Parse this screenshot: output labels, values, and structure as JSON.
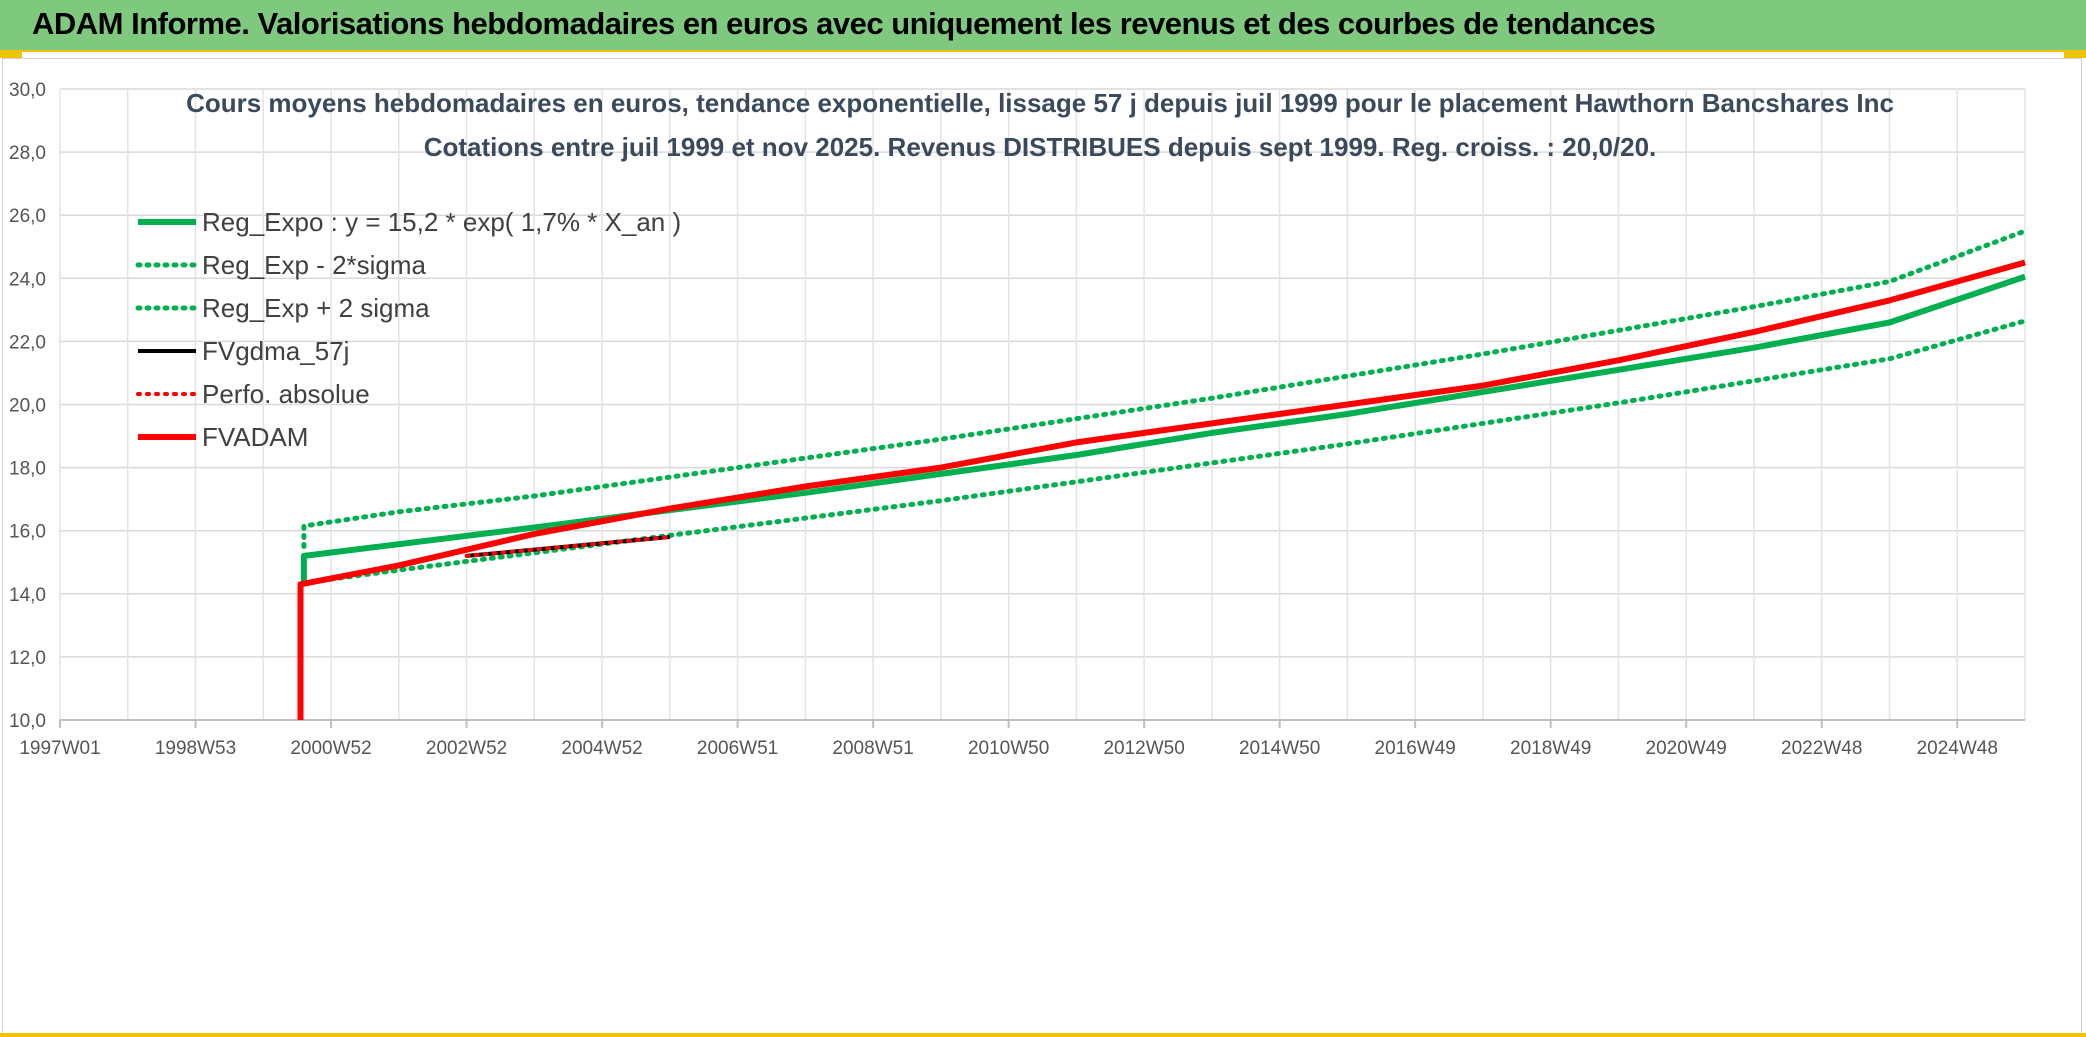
{
  "header": {
    "title": "ADAM Informe. Valorisations hebdomadaires en euros avec uniquement les revenus et des courbes de tendances"
  },
  "colors": {
    "banner": "#7fc97f",
    "accent": "#f0c400",
    "green": "#00b050",
    "red": "#ff0000",
    "black": "#000000"
  },
  "chart_data": {
    "type": "line",
    "title_lines": [
      "Cours moyens hebdomadaires en euros, tendance exponentielle, lissage 57 j depuis juil 1999 pour le placement Hawthorn Bancshares Inc",
      "Cotations entre juil 1999 et nov 2025. Revenus DISTRIBUES depuis sept 1999. Reg. croiss. : 20,0/20."
    ],
    "xlabel": "",
    "ylabel": "",
    "xlim": [
      1997.0,
      2026.0
    ],
    "ylim": [
      10,
      30
    ],
    "x_tick_labels": [
      "1997W01",
      "1998W53",
      "2000W52",
      "2002W52",
      "2004W52",
      "2006W51",
      "2008W51",
      "2010W50",
      "2012W50",
      "2014W50",
      "2016W49",
      "2018W49",
      "2020W49",
      "2022W48",
      "2024W48"
    ],
    "x_ticks": [
      1997.0,
      1999.0,
      2001.0,
      2003.0,
      2005.0,
      2007.0,
      2009.0,
      2011.0,
      2013.0,
      2015.0,
      2017.0,
      2019.0,
      2021.0,
      2023.0,
      2025.0
    ],
    "y_ticks": [
      10,
      12,
      14,
      16,
      18,
      20,
      22,
      24,
      26,
      28,
      30
    ],
    "y_tick_labels": [
      "10,0",
      "12,0",
      "14,0",
      "16,0",
      "18,0",
      "20,0",
      "22,0",
      "24,0",
      "26,0",
      "28,0",
      "30,0"
    ],
    "grid": true,
    "legend_position": "top-left",
    "series": [
      {
        "name": "Reg_Expo : y = 15,2 * exp( 1,7% *  X_an )",
        "color": "#00b050",
        "style": "solid",
        "width": 6,
        "x": [
          2000.6,
          2000.6,
          2004.0,
          2008.0,
          2010.0,
          2012.0,
          2014.0,
          2016.0,
          2018.0,
          2020.0,
          2022.0,
          2024.0,
          2026.0
        ],
        "y": [
          14.3,
          15.2,
          16.1,
          17.2,
          17.8,
          18.4,
          19.1,
          19.7,
          20.4,
          21.1,
          21.8,
          22.6,
          24.05
        ]
      },
      {
        "name": "Reg_Exp - 2*sigma",
        "color": "#00b050",
        "style": "dotted",
        "width": 5,
        "x": [
          2000.6,
          2002.0,
          2004.0,
          2006.0,
          2008.0,
          2010.0,
          2012.0,
          2014.0,
          2016.0,
          2018.0,
          2020.0,
          2022.0,
          2024.0,
          2026.0
        ],
        "y": [
          14.35,
          14.75,
          15.3,
          15.85,
          16.4,
          16.95,
          17.55,
          18.15,
          18.75,
          19.4,
          20.05,
          20.75,
          21.45,
          22.65
        ]
      },
      {
        "name": "Reg_Exp + 2 sigma",
        "color": "#00b050",
        "style": "dotted",
        "width": 5,
        "x": [
          2000.6,
          2000.6,
          2002.0,
          2004.0,
          2006.0,
          2008.0,
          2010.0,
          2012.0,
          2014.0,
          2016.0,
          2018.0,
          2020.0,
          2022.0,
          2024.0,
          2026.0
        ],
        "y": [
          15.5,
          16.15,
          16.6,
          17.1,
          17.7,
          18.3,
          18.9,
          19.55,
          20.2,
          20.9,
          21.6,
          22.35,
          23.1,
          23.9,
          25.5
        ]
      },
      {
        "name": "FVgdma_57j",
        "color": "#000000",
        "style": "solid",
        "width": 4,
        "x": [
          2003.0,
          2004.0,
          2005.0,
          2006.0
        ],
        "y": [
          15.2,
          15.4,
          15.6,
          15.8
        ]
      },
      {
        "name": "Perfo. absolue",
        "color": "#ff0000",
        "style": "dotted",
        "width": 4,
        "x": [
          2003.0,
          2004.0,
          2005.0,
          2006.0
        ],
        "y": [
          15.2,
          15.4,
          15.6,
          15.8
        ]
      },
      {
        "name": "FVADAM",
        "color": "#ff0000",
        "style": "solid",
        "width": 6,
        "x": [
          2000.55,
          2000.55,
          2002.0,
          2004.0,
          2006.0,
          2008.0,
          2010.0,
          2012.0,
          2014.0,
          2016.0,
          2018.0,
          2020.0,
          2022.0,
          2024.0,
          2025.0,
          2026.0
        ],
        "y": [
          10.0,
          14.3,
          14.9,
          15.9,
          16.7,
          17.4,
          18.0,
          18.8,
          19.4,
          20.0,
          20.6,
          21.4,
          22.3,
          23.3,
          23.9,
          24.5
        ]
      }
    ]
  }
}
